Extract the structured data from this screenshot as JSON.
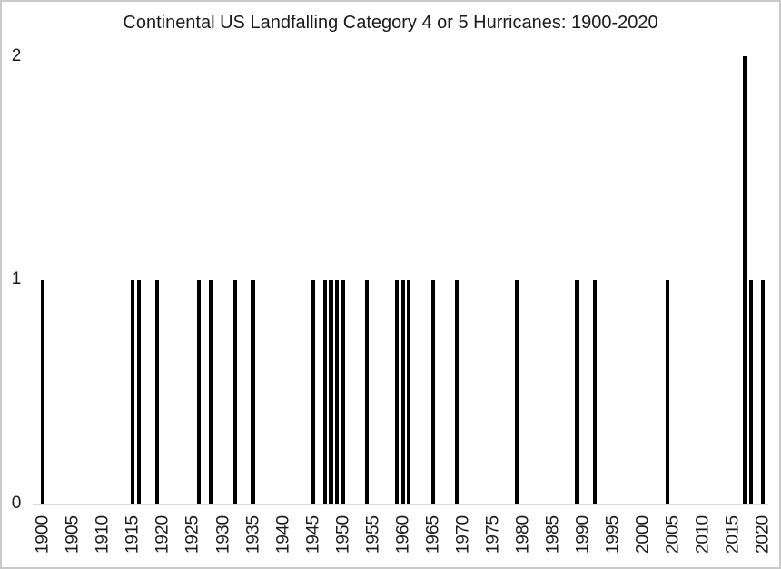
{
  "window": {
    "background_color": "#ffffff",
    "border_color": "#c9c9c9"
  },
  "chart_data": {
    "type": "bar",
    "title": "Continental US Landfalling Category 4 or 5 Hurricanes: 1900-2020",
    "xlabel": "",
    "ylabel": "",
    "x_range": [
      1900,
      2020
    ],
    "x_tick_interval": 5,
    "x_tick_labels": [
      "1900",
      "1905",
      "1910",
      "1915",
      "1920",
      "1925",
      "1930",
      "1935",
      "1940",
      "1945",
      "1950",
      "1955",
      "1960",
      "1965",
      "1970",
      "1975",
      "1980",
      "1985",
      "1990",
      "1995",
      "2000",
      "2005",
      "2010",
      "2015",
      "2020"
    ],
    "x_tick_rotation_degrees": 90,
    "y_ticks": [
      "0",
      "1",
      "2"
    ],
    "ylim": [
      0,
      2
    ],
    "grid": false,
    "legend": false,
    "bar_color": "#000000",
    "axis_line_color": "#d9d9d9",
    "text_color": "#1a1a1a",
    "data_points": [
      {
        "year": 1900,
        "count": 1
      },
      {
        "year": 1915,
        "count": 1
      },
      {
        "year": 1916,
        "count": 1
      },
      {
        "year": 1919,
        "count": 1
      },
      {
        "year": 1926,
        "count": 1
      },
      {
        "year": 1928,
        "count": 1
      },
      {
        "year": 1932,
        "count": 1
      },
      {
        "year": 1935,
        "count": 1
      },
      {
        "year": 1945,
        "count": 1
      },
      {
        "year": 1947,
        "count": 1
      },
      {
        "year": 1948,
        "count": 1
      },
      {
        "year": 1949,
        "count": 1
      },
      {
        "year": 1950,
        "count": 1
      },
      {
        "year": 1954,
        "count": 1
      },
      {
        "year": 1959,
        "count": 1
      },
      {
        "year": 1960,
        "count": 1
      },
      {
        "year": 1961,
        "count": 1
      },
      {
        "year": 1965,
        "count": 1
      },
      {
        "year": 1969,
        "count": 1
      },
      {
        "year": 1979,
        "count": 1
      },
      {
        "year": 1989,
        "count": 1
      },
      {
        "year": 1992,
        "count": 1
      },
      {
        "year": 2004,
        "count": 1
      },
      {
        "year": 2017,
        "count": 2
      },
      {
        "year": 2018,
        "count": 1
      },
      {
        "year": 2020,
        "count": 1
      }
    ]
  }
}
